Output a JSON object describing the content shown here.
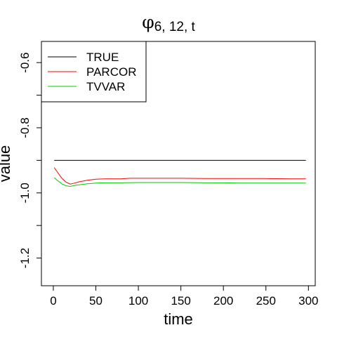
{
  "chart_data": {
    "type": "line",
    "title": "φ6, 12, t",
    "title_symbol": "φ",
    "title_subscript": "6, 12, t",
    "xlabel": "time",
    "ylabel": "value",
    "xlim": [
      -14,
      308
    ],
    "ylim": [
      -1.285,
      -0.535
    ],
    "x_ticks": [
      0,
      50,
      100,
      150,
      200,
      250,
      300
    ],
    "y_ticks": [
      -1.2,
      -1.1,
      -1.0,
      -0.9,
      -0.8,
      -0.7,
      -0.6
    ],
    "y_tick_labels": [
      "-1.2",
      "",
      "-1.0",
      "",
      "-0.8",
      "",
      "-0.6"
    ],
    "grid": false,
    "legend_position": "top-left",
    "series": [
      {
        "name": "TRUE",
        "color": "#000000",
        "x": [
          1,
          297
        ],
        "y": [
          -0.9,
          -0.9
        ]
      },
      {
        "name": "PARCOR",
        "color": "#ff0000",
        "x": [
          1,
          5,
          10,
          15,
          20,
          25,
          30,
          40,
          50,
          60,
          80,
          90,
          100,
          120,
          150,
          180,
          200,
          220,
          250,
          280,
          297
        ],
        "y": [
          -0.922,
          -0.937,
          -0.955,
          -0.967,
          -0.973,
          -0.97,
          -0.966,
          -0.961,
          -0.958,
          -0.957,
          -0.957,
          -0.955,
          -0.955,
          -0.955,
          -0.955,
          -0.956,
          -0.956,
          -0.956,
          -0.956,
          -0.957,
          -0.957
        ]
      },
      {
        "name": "TVVAR",
        "color": "#00cc00",
        "x": [
          1,
          5,
          10,
          15,
          20,
          25,
          30,
          40,
          50,
          60,
          80,
          100,
          120,
          150,
          180,
          200,
          220,
          250,
          280,
          297
        ],
        "y": [
          -0.953,
          -0.962,
          -0.972,
          -0.978,
          -0.98,
          -0.977,
          -0.975,
          -0.972,
          -0.97,
          -0.969,
          -0.969,
          -0.968,
          -0.968,
          -0.968,
          -0.969,
          -0.969,
          -0.97,
          -0.97,
          -0.97,
          -0.97
        ]
      }
    ]
  }
}
